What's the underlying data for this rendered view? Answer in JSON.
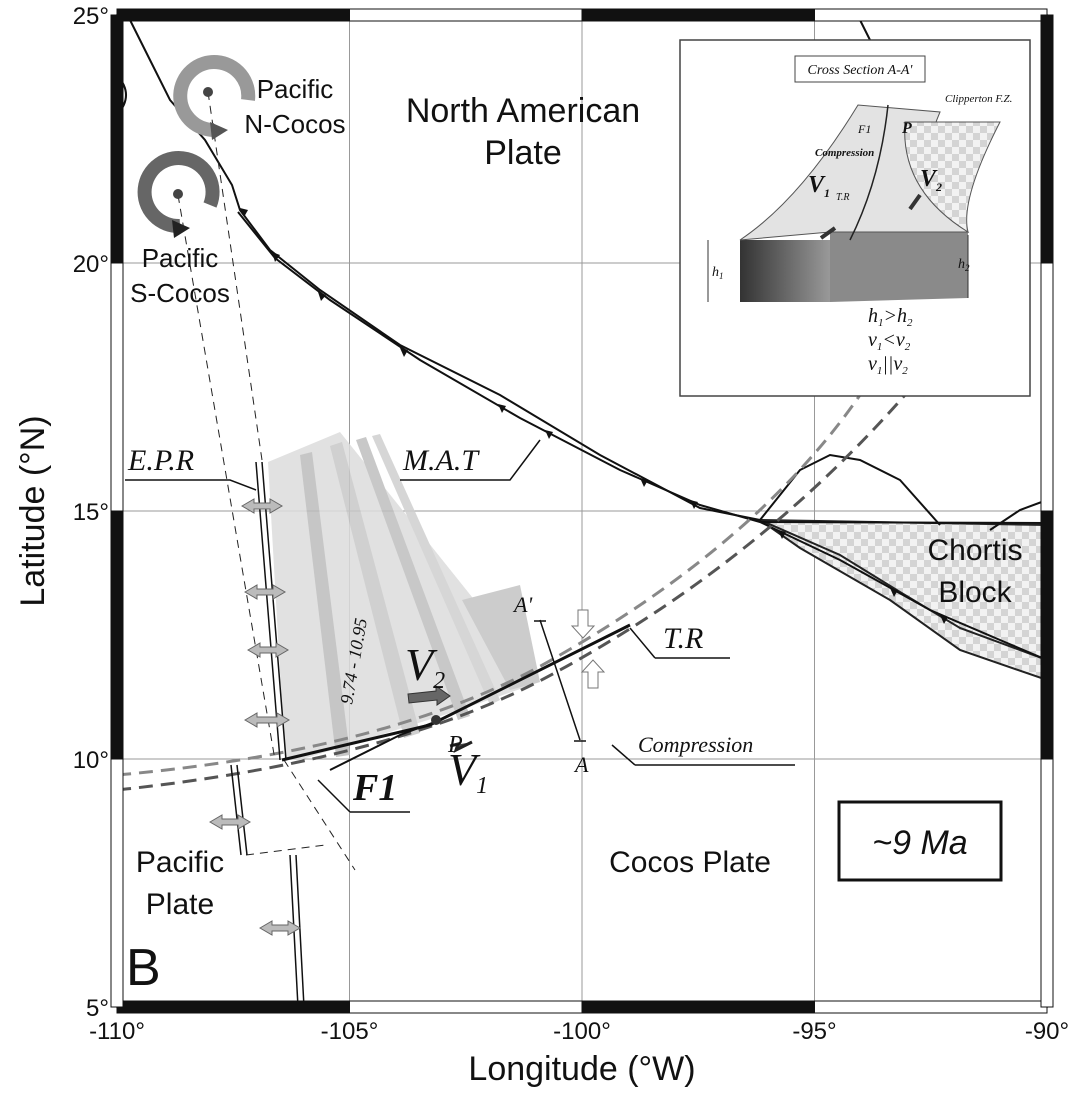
{
  "map": {
    "axes": {
      "xlabel": "Longitude (°W)",
      "ylabel": "Latitude (°N)",
      "xlim": [
        -110,
        -90
      ],
      "ylim": [
        5,
        25
      ],
      "xticks": [
        {
          "value": -110,
          "label": "-110°"
        },
        {
          "value": -105,
          "label": "-105°"
        },
        {
          "value": -100,
          "label": "-100°"
        },
        {
          "value": -95,
          "label": "-95°"
        },
        {
          "value": -90,
          "label": "-90°"
        }
      ],
      "yticks": [
        {
          "value": 5,
          "label": "5°"
        },
        {
          "value": 10,
          "label": "10°"
        },
        {
          "value": 15,
          "label": "15°"
        },
        {
          "value": 20,
          "label": "20°"
        },
        {
          "value": 25,
          "label": "25°"
        }
      ],
      "grid": true
    },
    "panel_label": "B",
    "age": "~9 Ma",
    "plates": {
      "north_american": [
        "North American",
        "Plate"
      ],
      "cocos": "Cocos Plate",
      "pacific": [
        "Pacific",
        "Plate"
      ],
      "chortis": [
        "Chortis",
        "Block"
      ]
    },
    "poles": {
      "n_cocos": [
        "Pacific",
        "N-Cocos"
      ],
      "s_cocos": [
        "Pacific",
        "S-Cocos"
      ]
    },
    "features": {
      "epr": "E.P.R",
      "mat": "M.A.T",
      "tr": "T.R",
      "f1": "F1",
      "compression": "Compression",
      "p": "P",
      "a_prime": "A'",
      "a": "A",
      "anomaly_range": "9.74 - 10.95",
      "v2": {
        "base": "V",
        "sub": "2"
      },
      "v1": {
        "base": "V",
        "sub": "1"
      }
    }
  },
  "inset": {
    "title": "Cross Section A-A'",
    "clipperton": "Clipperton F.Z.",
    "f1": "F1",
    "p": "P",
    "compression": "Compression",
    "v1": {
      "base": "V",
      "sub": "1"
    },
    "v2": {
      "base": "V",
      "sub": "2"
    },
    "tr": "T.R",
    "h1": {
      "base": "h",
      "sub": "1"
    },
    "h2": {
      "base": "h",
      "sub": "2"
    },
    "relations": [
      {
        "a": "h",
        "a_sub": "1",
        "op": ">",
        "b": "h",
        "b_sub": "2"
      },
      {
        "a": "v",
        "a_sub": "1",
        "op": "<",
        "b": "v",
        "b_sub": "2"
      },
      {
        "a": "v",
        "a_sub": "1",
        "op": "||",
        "b": "v",
        "b_sub": "2"
      }
    ]
  }
}
